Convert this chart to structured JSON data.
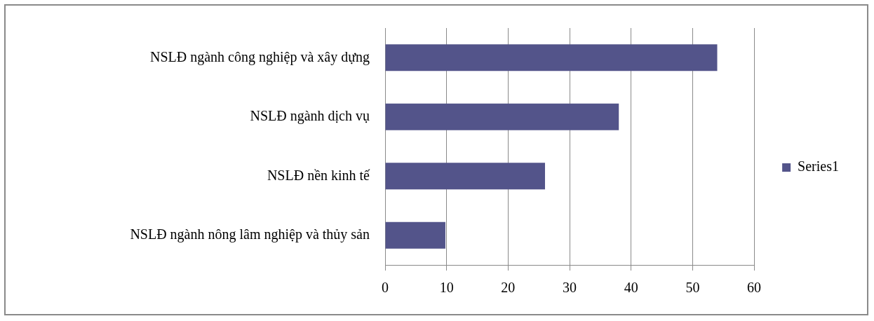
{
  "chart_data": {
    "type": "bar",
    "orientation": "horizontal",
    "categories": [
      "NSLĐ ngành công nghiệp và xây dựng",
      "NSLĐ ngành dịch vụ",
      "NSLĐ nền kinh tế",
      "NSLĐ ngành nông lâm nghiệp và thủy sản"
    ],
    "series": [
      {
        "name": "Series1",
        "color": "#53548a",
        "values": [
          54,
          38,
          26,
          9.8
        ]
      }
    ],
    "xlim": [
      0,
      60
    ],
    "xticks": [
      0,
      10,
      20,
      30,
      40,
      50,
      60
    ],
    "grid": "x",
    "legend": "right"
  }
}
